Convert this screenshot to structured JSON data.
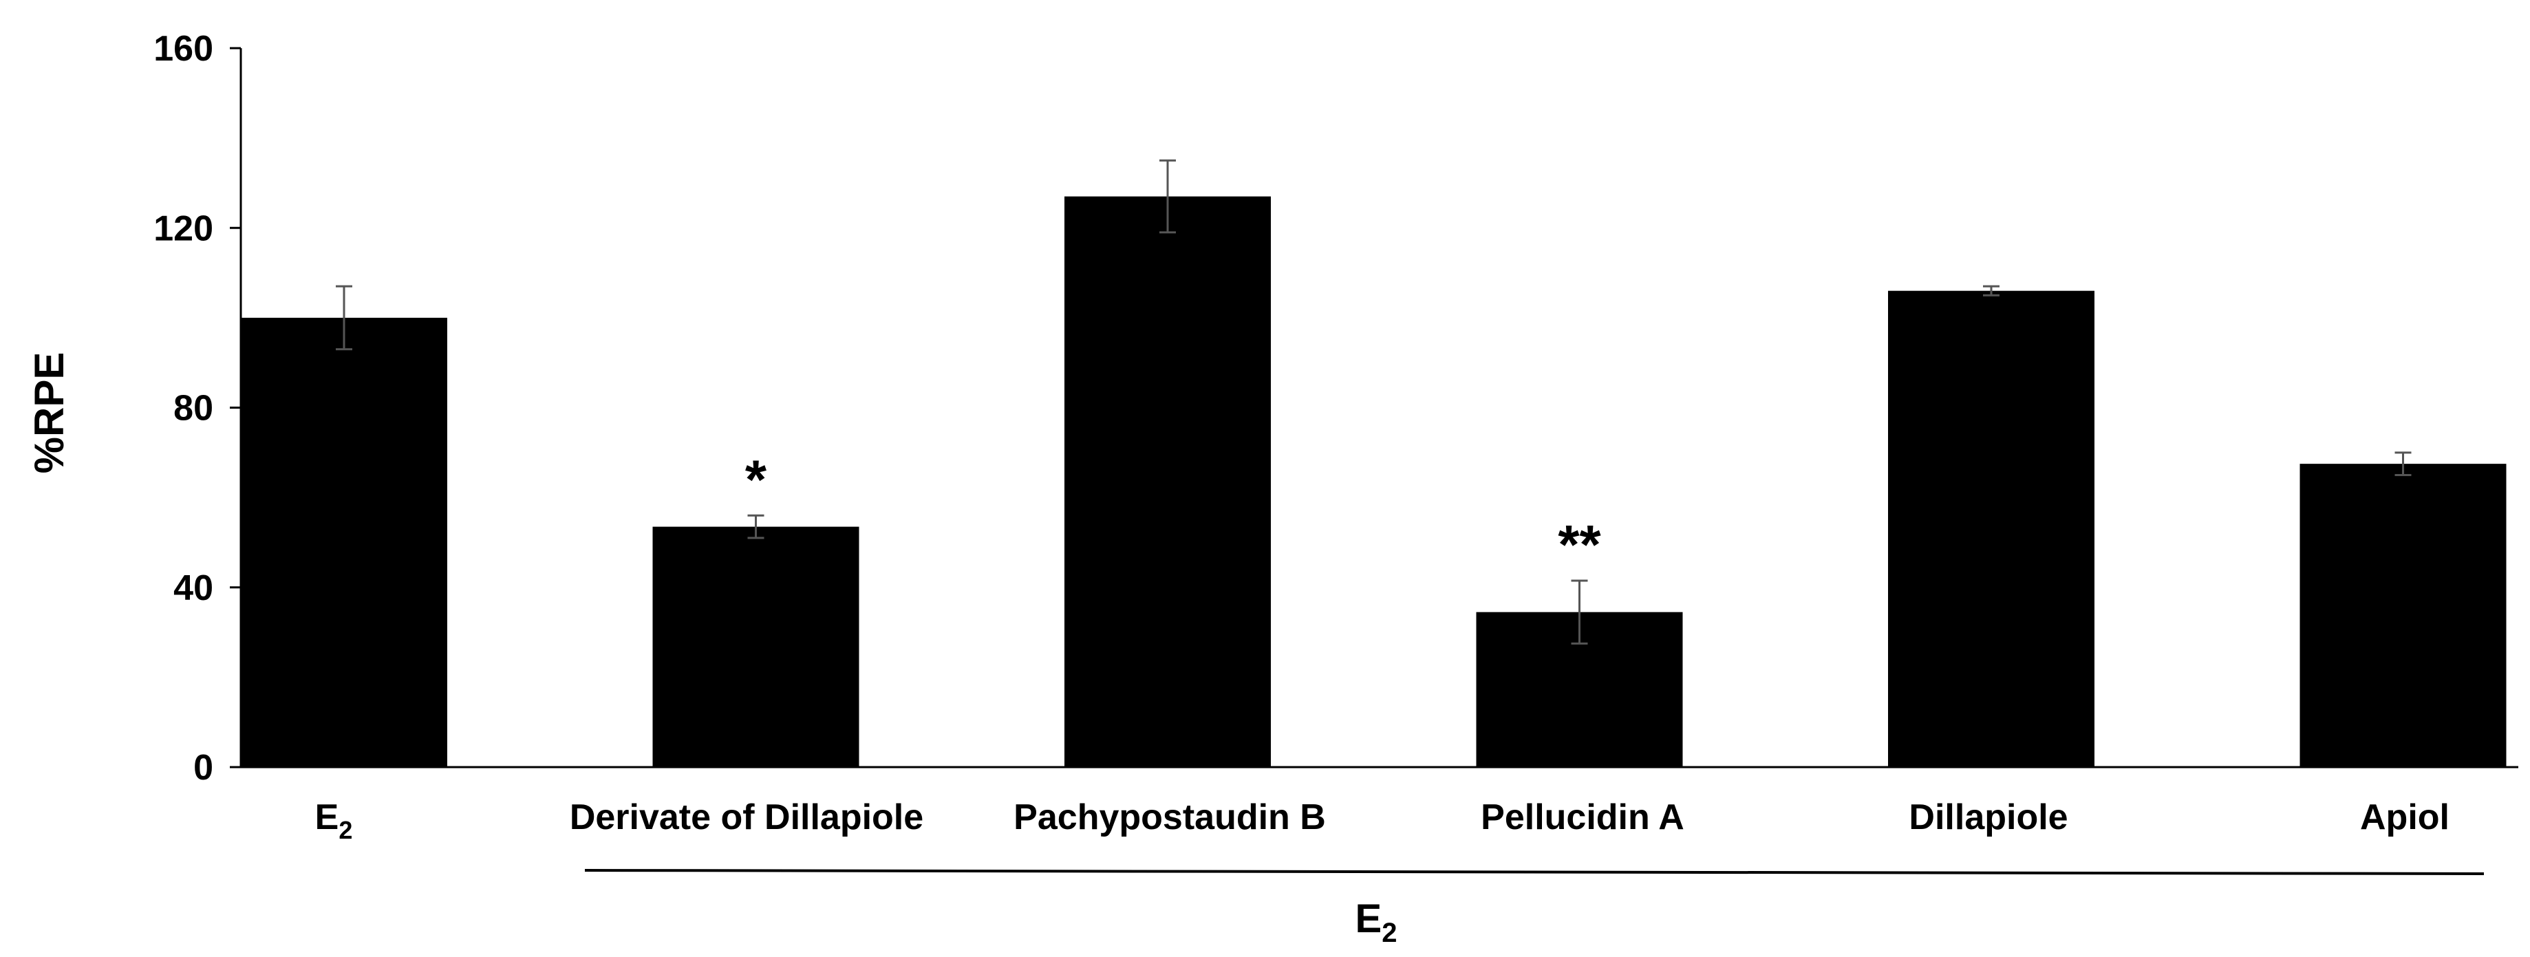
{
  "chart_data": {
    "type": "bar",
    "title": "",
    "xlabel": "",
    "ylabel": "%RPE",
    "ylim": [
      0,
      160
    ],
    "yticks": [
      0,
      40,
      80,
      120,
      160
    ],
    "grid": false,
    "categories": [
      {
        "main": "E",
        "sub": "2"
      },
      {
        "main": "Derivate of Dillapiole",
        "sub": ""
      },
      {
        "main": "Pachypostaudin B",
        "sub": ""
      },
      {
        "main": "Pellucidin A",
        "sub": ""
      },
      {
        "main": "Dillapiole",
        "sub": ""
      },
      {
        "main": "Apiol",
        "sub": ""
      }
    ],
    "series": [
      {
        "values": [
          100,
          53.5,
          127,
          34.5,
          106,
          67.5
        ],
        "errors": [
          7,
          2.5,
          8,
          7,
          1,
          2.5
        ],
        "color": "#000000"
      }
    ],
    "annotations": [
      "",
      "*",
      "",
      "**",
      "",
      ""
    ],
    "group_label": {
      "main": "E",
      "sub": "2"
    }
  }
}
